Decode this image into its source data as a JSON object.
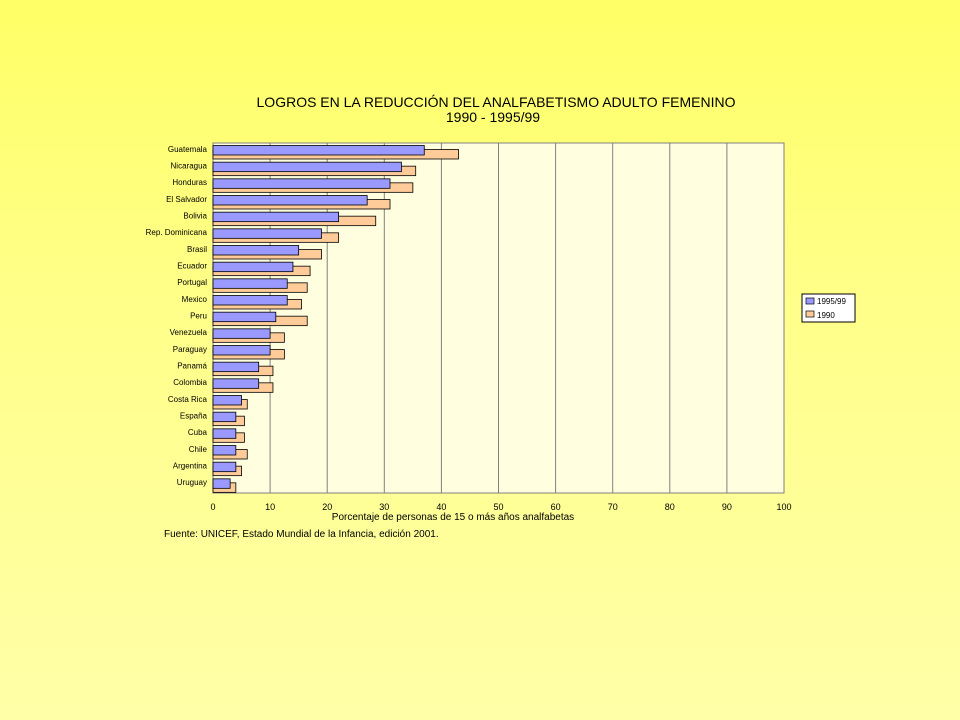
{
  "chart_data": {
    "type": "bar",
    "orientation": "horizontal",
    "title": "LOGROS EN LA REDUCCIÓN DEL ANALFABETISMO ADULTO FEMENINO",
    "subtitle": "1990 - 1995/99",
    "xlabel": "Porcentaje de personas de 15 o más años analfabetas",
    "ylabel": "",
    "xlim": [
      0,
      100
    ],
    "ticks": [
      0,
      10,
      20,
      30,
      40,
      50,
      60,
      70,
      80,
      90,
      100
    ],
    "grid": true,
    "legend_position": "right",
    "categories": [
      "Guatemala",
      "Nicaragua",
      "Honduras",
      "El Salvador",
      "Bolivia",
      "Rep. Dominicana",
      "Brasil",
      "Ecuador",
      "Portugal",
      "Mexico",
      "Peru",
      "Venezuela",
      "Paraguay",
      "Panamá",
      "Colombia",
      "Costa Rica",
      "España",
      "Cuba",
      "Chile",
      "Argentina",
      "Uruguay"
    ],
    "series": [
      {
        "name": "1995/99",
        "color": "#9999ff",
        "values": [
          37,
          33,
          31,
          27,
          22,
          19,
          15,
          14,
          13,
          13,
          11,
          10,
          10,
          8,
          8,
          5,
          4,
          4,
          4,
          4,
          3
        ]
      },
      {
        "name": "1990",
        "color": "#ffcc99",
        "values": [
          43,
          35.5,
          35,
          31,
          28.5,
          22,
          19,
          17,
          16.5,
          15.5,
          16.5,
          12.5,
          12.5,
          10.5,
          10.5,
          6,
          5.5,
          5.5,
          6,
          5,
          4
        ]
      }
    ],
    "source": "Fuente:  UNICEF, Estado Mundial de la Infancia, edición 2001."
  },
  "colors": {
    "plot_background": "#ffffe0",
    "gridline": "#808080",
    "page_background": "#ffff77"
  }
}
